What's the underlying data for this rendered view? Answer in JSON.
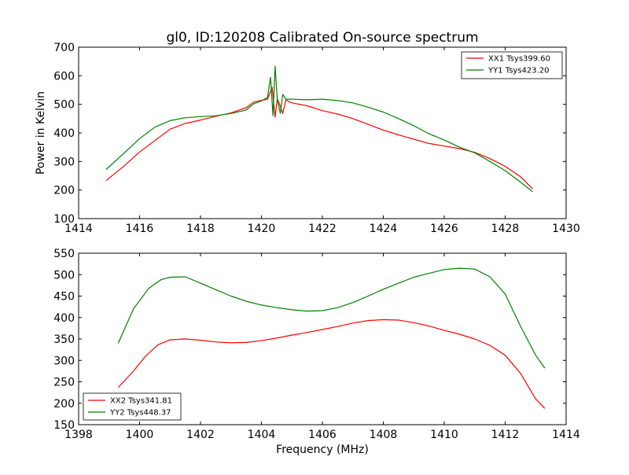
{
  "chart_data": [
    {
      "type": "line",
      "title": "gl0, ID:120208 Calibrated On-source spectrum",
      "xlabel": "",
      "ylabel": "Power in Kelvin",
      "xlim": [
        1414,
        1430
      ],
      "ylim": [
        100,
        700
      ],
      "xticks": [
        1414,
        1416,
        1418,
        1420,
        1422,
        1424,
        1426,
        1428,
        1430
      ],
      "yticks": [
        100,
        200,
        300,
        400,
        500,
        600,
        700
      ],
      "grid": false,
      "legend_position": "top-right",
      "series": [
        {
          "name": "XX1 Tsys399.60",
          "color": "#ff0000",
          "points": [
            [
              1414.9,
              233
            ],
            [
              1415.5,
              285
            ],
            [
              1416.0,
              333
            ],
            [
              1416.5,
              373
            ],
            [
              1417.0,
              413
            ],
            [
              1417.5,
              433
            ],
            [
              1418.0,
              445
            ],
            [
              1418.5,
              458
            ],
            [
              1419.0,
              470
            ],
            [
              1419.5,
              488
            ],
            [
              1419.75,
              508
            ],
            [
              1420.0,
              514
            ],
            [
              1420.2,
              518
            ],
            [
              1420.35,
              560
            ],
            [
              1420.45,
              455
            ],
            [
              1420.52,
              520
            ],
            [
              1420.6,
              500
            ],
            [
              1420.7,
              468
            ],
            [
              1420.8,
              515
            ],
            [
              1421.0,
              505
            ],
            [
              1421.5,
              495
            ],
            [
              1422.0,
              478
            ],
            [
              1422.5,
              466
            ],
            [
              1423.0,
              450
            ],
            [
              1423.5,
              430
            ],
            [
              1424.0,
              410
            ],
            [
              1424.5,
              393
            ],
            [
              1425.0,
              378
            ],
            [
              1425.5,
              363
            ],
            [
              1426.0,
              354
            ],
            [
              1426.5,
              345
            ],
            [
              1427.0,
              332
            ],
            [
              1427.5,
              310
            ],
            [
              1428.0,
              283
            ],
            [
              1428.5,
              247
            ],
            [
              1428.9,
              204
            ]
          ]
        },
        {
          "name": "YY1 Tsys423.20",
          "color": "#008000",
          "points": [
            [
              1414.9,
              272
            ],
            [
              1415.5,
              330
            ],
            [
              1416.0,
              380
            ],
            [
              1416.5,
              420
            ],
            [
              1417.0,
              443
            ],
            [
              1417.5,
              453
            ],
            [
              1418.0,
              457
            ],
            [
              1418.5,
              460
            ],
            [
              1419.0,
              468
            ],
            [
              1419.5,
              480
            ],
            [
              1419.75,
              502
            ],
            [
              1420.0,
              512
            ],
            [
              1420.2,
              525
            ],
            [
              1420.3,
              595
            ],
            [
              1420.38,
              460
            ],
            [
              1420.45,
              633
            ],
            [
              1420.52,
              520
            ],
            [
              1420.62,
              468
            ],
            [
              1420.7,
              535
            ],
            [
              1420.8,
              518
            ],
            [
              1421.0,
              518
            ],
            [
              1421.5,
              516
            ],
            [
              1422.0,
              518
            ],
            [
              1422.5,
              513
            ],
            [
              1423.0,
              505
            ],
            [
              1423.5,
              490
            ],
            [
              1424.0,
              473
            ],
            [
              1424.5,
              450
            ],
            [
              1425.0,
              425
            ],
            [
              1425.5,
              397
            ],
            [
              1426.0,
              375
            ],
            [
              1426.5,
              350
            ],
            [
              1427.0,
              330
            ],
            [
              1427.5,
              300
            ],
            [
              1428.0,
              268
            ],
            [
              1428.5,
              228
            ],
            [
              1428.9,
              194
            ]
          ]
        }
      ]
    },
    {
      "type": "line",
      "title": "",
      "xlabel": "Frequency (MHz)",
      "ylabel": "",
      "xlim": [
        1398,
        1414
      ],
      "ylim": [
        150,
        550
      ],
      "xticks": [
        1398,
        1400,
        1402,
        1404,
        1406,
        1408,
        1410,
        1412,
        1414
      ],
      "yticks": [
        150,
        200,
        250,
        300,
        350,
        400,
        450,
        500,
        550
      ],
      "grid": false,
      "legend_position": "bottom-left",
      "series": [
        {
          "name": "XX2 Tsys341.81",
          "color": "#ff0000",
          "points": [
            [
              1399.3,
              237
            ],
            [
              1399.8,
              275
            ],
            [
              1400.2,
              310
            ],
            [
              1400.6,
              336
            ],
            [
              1401.0,
              348
            ],
            [
              1401.5,
              350
            ],
            [
              1402.0,
              347
            ],
            [
              1402.5,
              343
            ],
            [
              1403.0,
              341
            ],
            [
              1403.5,
              342
            ],
            [
              1404.0,
              346
            ],
            [
              1404.5,
              352
            ],
            [
              1405.0,
              359
            ],
            [
              1405.5,
              365
            ],
            [
              1406.0,
              372
            ],
            [
              1406.5,
              379
            ],
            [
              1407.0,
              387
            ],
            [
              1407.5,
              393
            ],
            [
              1408.0,
              395
            ],
            [
              1408.5,
              394
            ],
            [
              1409.0,
              388
            ],
            [
              1409.5,
              380
            ],
            [
              1410.0,
              370
            ],
            [
              1410.5,
              361
            ],
            [
              1411.0,
              350
            ],
            [
              1411.5,
              335
            ],
            [
              1412.0,
              312
            ],
            [
              1412.5,
              270
            ],
            [
              1413.0,
              210
            ],
            [
              1413.3,
              188
            ]
          ]
        },
        {
          "name": "YY2 Tsys448.37",
          "color": "#008000",
          "points": [
            [
              1399.3,
              340
            ],
            [
              1399.8,
              420
            ],
            [
              1400.3,
              468
            ],
            [
              1400.7,
              488
            ],
            [
              1401.0,
              494
            ],
            [
              1401.5,
              495
            ],
            [
              1402.0,
              480
            ],
            [
              1402.5,
              465
            ],
            [
              1403.0,
              450
            ],
            [
              1403.5,
              438
            ],
            [
              1404.0,
              429
            ],
            [
              1404.5,
              423
            ],
            [
              1405.0,
              418
            ],
            [
              1405.5,
              415
            ],
            [
              1406.0,
              416
            ],
            [
              1406.5,
              423
            ],
            [
              1407.0,
              435
            ],
            [
              1407.5,
              450
            ],
            [
              1408.0,
              466
            ],
            [
              1408.5,
              480
            ],
            [
              1409.0,
              494
            ],
            [
              1409.5,
              503
            ],
            [
              1410.0,
              512
            ],
            [
              1410.5,
              515
            ],
            [
              1411.0,
              513
            ],
            [
              1411.5,
              495
            ],
            [
              1412.0,
              455
            ],
            [
              1412.5,
              380
            ],
            [
              1413.0,
              312
            ],
            [
              1413.3,
              282
            ]
          ]
        }
      ]
    }
  ]
}
